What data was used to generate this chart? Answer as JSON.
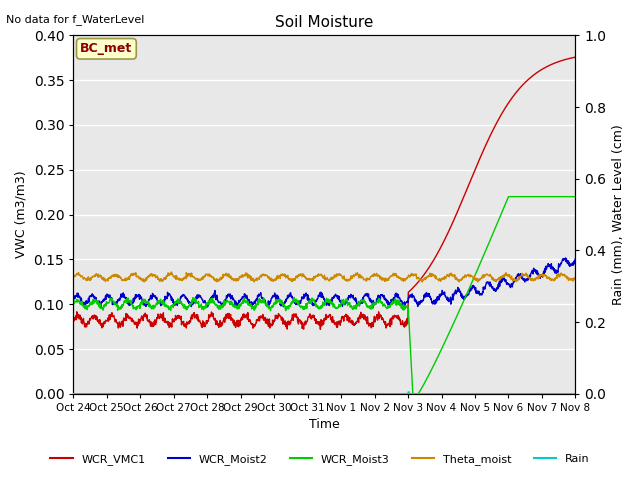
{
  "title": "Soil Moisture",
  "top_left_text": "No data for f_WaterLevel",
  "annotation_text": "BC_met",
  "xlabel": "Time",
  "ylabel_left": "VWC (m3/m3)",
  "ylabel_right": "Rain (mm), Water Level (cm)",
  "ylim_left": [
    0.0,
    0.4
  ],
  "ylim_right": [
    0.0,
    1.0
  ],
  "x_tick_labels": [
    "Oct 24",
    "Oct 25",
    "Oct 26",
    "Oct 27",
    "Oct 28",
    "Oct 29",
    "Oct 30",
    "Oct 31",
    "Nov 1",
    "Nov 2",
    "Nov 3",
    "Nov 4",
    "Nov 5",
    "Nov 6",
    "Nov 7",
    "Nov 8"
  ],
  "yticks_left": [
    0.0,
    0.05,
    0.1,
    0.15,
    0.2,
    0.25,
    0.3,
    0.35,
    0.4
  ],
  "yticks_right": [
    0.0,
    0.2,
    0.4,
    0.6,
    0.8,
    1.0
  ],
  "colors": {
    "WCR_VMC1": "#cc0000",
    "WCR_Moist2": "#0000cc",
    "WCR_Moist3": "#00cc00",
    "Theta_moist": "#cc8800",
    "Rain": "#00cccc",
    "bg_light": "#e8e8e8",
    "bg_dark": "#d8d8d8",
    "grid": "#ffffff"
  },
  "legend_labels": [
    "WCR_VMC1",
    "WCR_Moist2",
    "WCR_Moist3",
    "Theta_moist",
    "Rain"
  ]
}
